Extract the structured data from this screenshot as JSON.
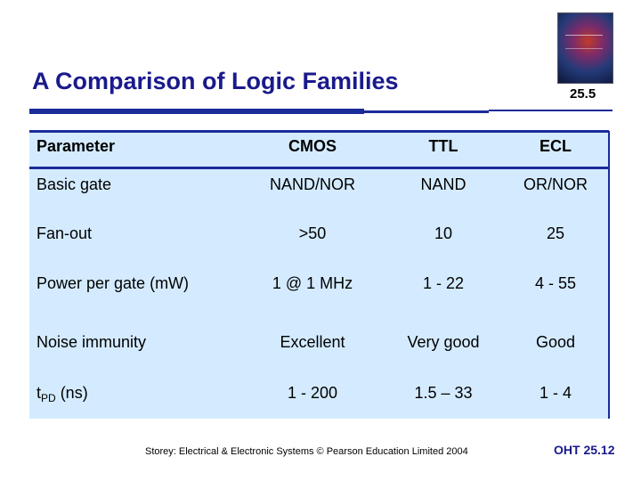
{
  "title": "A Comparison of Logic Families",
  "slide_number": "25.5",
  "table": {
    "headers": [
      "Parameter",
      "CMOS",
      "TTL",
      "ECL"
    ],
    "rows": [
      {
        "param": "Basic gate",
        "cmos": "NAND/NOR",
        "ttl": "NAND",
        "ecl": "OR/NOR"
      },
      {
        "param": "Fan-out",
        "cmos": ">50",
        "ttl": "10",
        "ecl": "25"
      },
      {
        "param": "Power per gate (mW)",
        "cmos": "1 @ 1 MHz",
        "ttl": "1 - 22",
        "ecl": "4 - 55"
      },
      {
        "param": "Noise immunity",
        "cmos": "Excellent",
        "ttl": "Very good",
        "ecl": "Good"
      },
      {
        "param_main": "t",
        "param_sub": "PD",
        "param_unit": " (ns)",
        "cmos": "1 - 200",
        "ttl": "1.5 – 33",
        "ecl": "1 - 4"
      }
    ]
  },
  "footer": {
    "credit": "Storey: Electrical & Electronic Systems © Pearson Education Limited 2004",
    "oht": "OHT 25.12"
  },
  "colors": {
    "title": "#1a1a8c",
    "rule": "#1b2b9a",
    "table_bg": "#d4ebff"
  }
}
